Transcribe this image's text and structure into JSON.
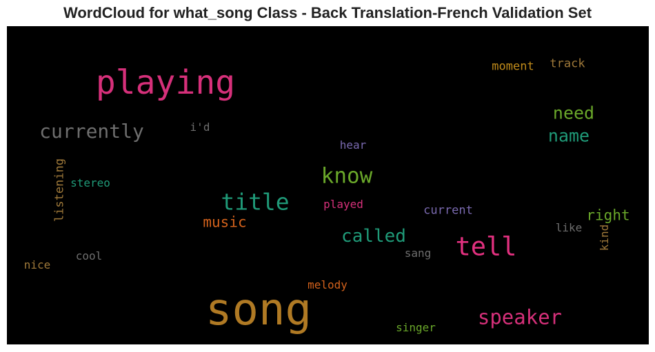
{
  "chart_data": {
    "type": "wordcloud",
    "title": "WordCloud for what_song Class - Back Translation-French Validation Set",
    "words": [
      {
        "text": "song",
        "color": "#b07a24",
        "weight": 1.0
      },
      {
        "text": "playing",
        "color": "#d6307a",
        "weight": 0.85
      },
      {
        "text": "tell",
        "color": "#e0307e",
        "weight": 0.6
      },
      {
        "text": "currently",
        "color": "#6e6e6e",
        "weight": 0.5
      },
      {
        "text": "title",
        "color": "#1f9a78",
        "weight": 0.48
      },
      {
        "text": "know",
        "color": "#6aa82a",
        "weight": 0.45
      },
      {
        "text": "speaker",
        "color": "#d6307a",
        "weight": 0.45
      },
      {
        "text": "need",
        "color": "#6aa82a",
        "weight": 0.38
      },
      {
        "text": "name",
        "color": "#1f9a78",
        "weight": 0.38
      },
      {
        "text": "called",
        "color": "#1f9a78",
        "weight": 0.38
      },
      {
        "text": "right",
        "color": "#6aa82a",
        "weight": 0.32
      },
      {
        "text": "music",
        "color": "#d4621c",
        "weight": 0.3
      },
      {
        "text": "moment",
        "color": "#c08b1a",
        "weight": 0.25
      },
      {
        "text": "track",
        "color": "#a07a3a",
        "weight": 0.24
      },
      {
        "text": "listening",
        "color": "#a07a3a",
        "weight": 0.24,
        "vertical": true
      },
      {
        "text": "current",
        "color": "#7a6ab0",
        "weight": 0.24
      },
      {
        "text": "stereo",
        "color": "#1f9a78",
        "weight": 0.23
      },
      {
        "text": "hear",
        "color": "#7a6ab0",
        "weight": 0.23
      },
      {
        "text": "played",
        "color": "#d6307a",
        "weight": 0.23
      },
      {
        "text": "melody",
        "color": "#d4621c",
        "weight": 0.23
      },
      {
        "text": "singer",
        "color": "#6aa82a",
        "weight": 0.23
      },
      {
        "text": "like",
        "color": "#6e6e6e",
        "weight": 0.23
      },
      {
        "text": "kind",
        "color": "#a07a3a",
        "weight": 0.22,
        "vertical": true
      },
      {
        "text": "i'd",
        "color": "#6e6e6e",
        "weight": 0.22
      },
      {
        "text": "cool",
        "color": "#6e6e6e",
        "weight": 0.22
      },
      {
        "text": "sang",
        "color": "#6e6e6e",
        "weight": 0.22
      },
      {
        "text": "nice",
        "color": "#a07a3a",
        "weight": 0.22
      }
    ]
  }
}
